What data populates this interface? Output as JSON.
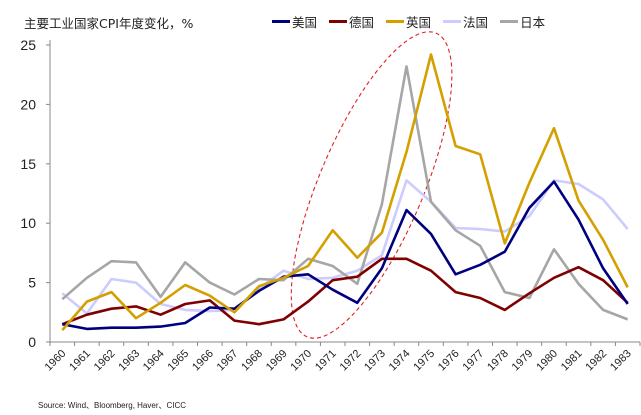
{
  "chart_data": {
    "type": "line",
    "title": "主要工业国家CPI年度变化，%",
    "xlabel": "",
    "ylabel": "",
    "ylim": [
      0,
      25
    ],
    "yticks": [
      0,
      5,
      10,
      15,
      20,
      25
    ],
    "grid": false,
    "legend_position": "top",
    "categories": [
      "1960",
      "1961",
      "1962",
      "1963",
      "1964",
      "1965",
      "1966",
      "1967",
      "1968",
      "1969",
      "1970",
      "1971",
      "1972",
      "1973",
      "1974",
      "1975",
      "1976",
      "1977",
      "1978",
      "1979",
      "1980",
      "1981",
      "1982",
      "1983"
    ],
    "series": [
      {
        "name": "美国",
        "color": "#00007f",
        "values": [
          1.5,
          1.1,
          1.2,
          1.2,
          1.3,
          1.6,
          2.9,
          2.8,
          4.3,
          5.5,
          5.7,
          4.4,
          3.3,
          6.2,
          11.1,
          9.1,
          5.7,
          6.5,
          7.6,
          11.3,
          13.5,
          10.3,
          6.2,
          3.2
        ]
      },
      {
        "name": "德国",
        "color": "#7f0000",
        "values": [
          1.5,
          2.3,
          2.8,
          3.0,
          2.3,
          3.2,
          3.5,
          1.8,
          1.5,
          1.9,
          3.4,
          5.2,
          5.5,
          7.0,
          7.0,
          6.0,
          4.2,
          3.7,
          2.7,
          4.1,
          5.4,
          6.3,
          5.2,
          3.3
        ]
      },
      {
        "name": "英国",
        "color": "#d4a000",
        "values": [
          1.0,
          3.4,
          4.2,
          2.0,
          3.3,
          4.8,
          3.9,
          2.5,
          4.7,
          5.4,
          6.4,
          9.4,
          7.1,
          9.2,
          16.0,
          24.2,
          16.5,
          15.8,
          8.3,
          13.4,
          18.0,
          11.9,
          8.6,
          4.6
        ]
      },
      {
        "name": "法国",
        "color": "#ccccff",
        "values": [
          4.1,
          2.4,
          5.3,
          5.0,
          3.2,
          2.7,
          2.6,
          2.7,
          4.5,
          6.0,
          5.3,
          5.4,
          6.0,
          7.3,
          13.6,
          11.8,
          9.6,
          9.5,
          9.3,
          10.6,
          13.6,
          13.3,
          12.0,
          9.5
        ]
      },
      {
        "name": "日本",
        "color": "#a6a6a6",
        "values": [
          3.6,
          5.4,
          6.8,
          6.7,
          3.8,
          6.7,
          5.0,
          4.0,
          5.3,
          5.2,
          7.0,
          6.4,
          4.9,
          11.6,
          23.2,
          11.8,
          9.4,
          8.1,
          4.2,
          3.7,
          7.8,
          4.9,
          2.7,
          1.9
        ]
      }
    ],
    "annotations": [
      {
        "type": "dashed-ellipse",
        "color": "#e02020",
        "span": [
          "1970",
          "1975"
        ]
      }
    ],
    "source": "Source: Wind、Bloomberg, Haver、CICC"
  }
}
